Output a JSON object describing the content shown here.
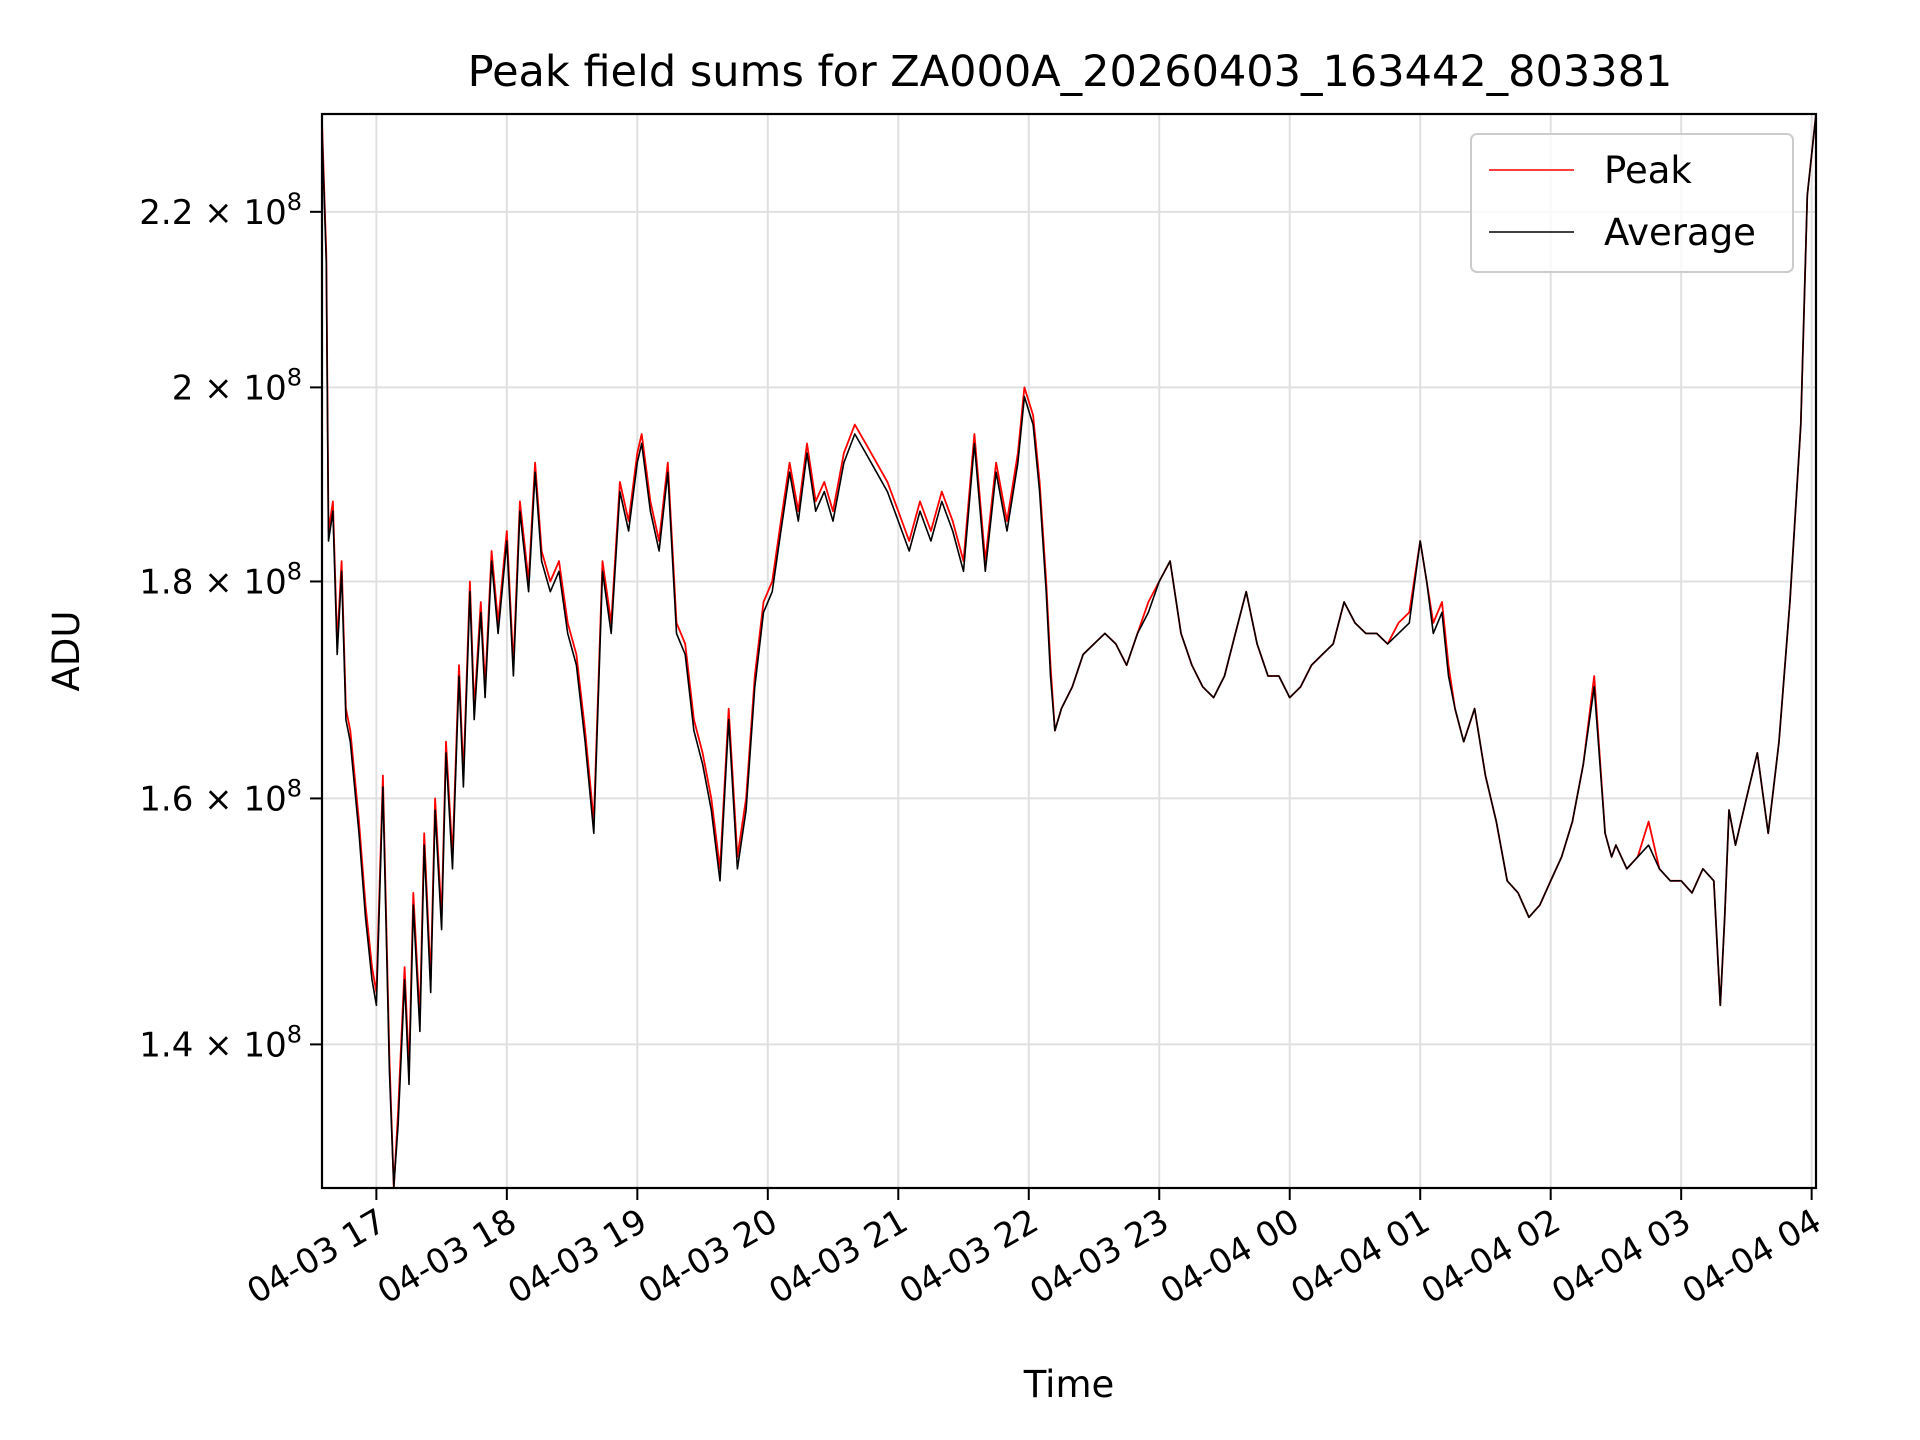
{
  "chart_data": {
    "type": "line",
    "title": "Peak field sums for ZA000A_20260403_163442_803381",
    "xlabel": "Time",
    "ylabel": "ADU",
    "y_scale": "log",
    "ylim": [
      129500000,
      232000000
    ],
    "xlim": [
      "2026-04-03 16:35",
      "2026-04-04 04:02"
    ],
    "grid": true,
    "legend_position": "top-right",
    "x_ticks": [
      {
        "t": "2026-04-03 17:00",
        "label": "04-03 17"
      },
      {
        "t": "2026-04-03 18:00",
        "label": "04-03 18"
      },
      {
        "t": "2026-04-03 19:00",
        "label": "04-03 19"
      },
      {
        "t": "2026-04-03 20:00",
        "label": "04-03 20"
      },
      {
        "t": "2026-04-03 21:00",
        "label": "04-03 21"
      },
      {
        "t": "2026-04-03 22:00",
        "label": "04-03 22"
      },
      {
        "t": "2026-04-03 23:00",
        "label": "04-03 23"
      },
      {
        "t": "2026-04-04 00:00",
        "label": "04-04 00"
      },
      {
        "t": "2026-04-04 01:00",
        "label": "04-04 01"
      },
      {
        "t": "2026-04-04 02:00",
        "label": "04-04 02"
      },
      {
        "t": "2026-04-04 03:00",
        "label": "04-04 03"
      },
      {
        "t": "2026-04-04 04:00",
        "label": "04-04 04"
      }
    ],
    "y_ticks": [
      {
        "value": 140000000,
        "mantissa": "1.4",
        "base": "10",
        "exp": "8"
      },
      {
        "value": 160000000,
        "mantissa": "1.6",
        "base": "10",
        "exp": "8"
      },
      {
        "value": 180000000,
        "mantissa": "1.8",
        "base": "10",
        "exp": "8"
      },
      {
        "value": 200000000,
        "mantissa": "2",
        "base": "10",
        "exp": "8"
      },
      {
        "value": 220000000,
        "mantissa": "2.2",
        "base": "10",
        "exp": "8"
      }
    ],
    "series": [
      {
        "name": "Peak",
        "color": "#ff0000"
      },
      {
        "name": "Average",
        "color": "#000000"
      }
    ],
    "x": [
      "2026-04-03 16:35",
      "2026-04-03 16:37",
      "2026-04-03 16:38",
      "2026-04-03 16:40",
      "2026-04-03 16:42",
      "2026-04-03 16:44",
      "2026-04-03 16:46",
      "2026-04-03 16:48",
      "2026-04-03 16:50",
      "2026-04-03 16:52",
      "2026-04-03 16:55",
      "2026-04-03 16:58",
      "2026-04-03 17:00",
      "2026-04-03 17:03",
      "2026-04-03 17:06",
      "2026-04-03 17:08",
      "2026-04-03 17:10",
      "2026-04-03 17:13",
      "2026-04-03 17:15",
      "2026-04-03 17:17",
      "2026-04-03 17:20",
      "2026-04-03 17:22",
      "2026-04-03 17:25",
      "2026-04-03 17:27",
      "2026-04-03 17:30",
      "2026-04-03 17:32",
      "2026-04-03 17:35",
      "2026-04-03 17:38",
      "2026-04-03 17:40",
      "2026-04-03 17:43",
      "2026-04-03 17:45",
      "2026-04-03 17:48",
      "2026-04-03 17:50",
      "2026-04-03 17:53",
      "2026-04-03 17:56",
      "2026-04-03 18:00",
      "2026-04-03 18:03",
      "2026-04-03 18:06",
      "2026-04-03 18:10",
      "2026-04-03 18:13",
      "2026-04-03 18:16",
      "2026-04-03 18:20",
      "2026-04-03 18:24",
      "2026-04-03 18:28",
      "2026-04-03 18:32",
      "2026-04-03 18:36",
      "2026-04-03 18:40",
      "2026-04-03 18:44",
      "2026-04-03 18:48",
      "2026-04-03 18:52",
      "2026-04-03 18:56",
      "2026-04-03 19:00",
      "2026-04-03 19:02",
      "2026-04-03 19:06",
      "2026-04-03 19:10",
      "2026-04-03 19:14",
      "2026-04-03 19:18",
      "2026-04-03 19:22",
      "2026-04-03 19:26",
      "2026-04-03 19:30",
      "2026-04-03 19:34",
      "2026-04-03 19:38",
      "2026-04-03 19:42",
      "2026-04-03 19:46",
      "2026-04-03 19:50",
      "2026-04-03 19:54",
      "2026-04-03 19:58",
      "2026-04-03 20:02",
      "2026-04-03 20:06",
      "2026-04-03 20:10",
      "2026-04-03 20:14",
      "2026-04-03 20:18",
      "2026-04-03 20:22",
      "2026-04-03 20:26",
      "2026-04-03 20:30",
      "2026-04-03 20:35",
      "2026-04-03 20:40",
      "2026-04-03 20:45",
      "2026-04-03 20:50",
      "2026-04-03 20:55",
      "2026-04-03 21:00",
      "2026-04-03 21:05",
      "2026-04-03 21:10",
      "2026-04-03 21:15",
      "2026-04-03 21:20",
      "2026-04-03 21:25",
      "2026-04-03 21:30",
      "2026-04-03 21:35",
      "2026-04-03 21:40",
      "2026-04-03 21:45",
      "2026-04-03 21:50",
      "2026-04-03 21:55",
      "2026-04-03 21:58",
      "2026-04-03 22:02",
      "2026-04-03 22:05",
      "2026-04-03 22:08",
      "2026-04-03 22:10",
      "2026-04-03 22:12",
      "2026-04-03 22:15",
      "2026-04-03 22:20",
      "2026-04-03 22:25",
      "2026-04-03 22:30",
      "2026-04-03 22:35",
      "2026-04-03 22:40",
      "2026-04-03 22:45",
      "2026-04-03 22:50",
      "2026-04-03 22:55",
      "2026-04-03 23:00",
      "2026-04-03 23:05",
      "2026-04-03 23:10",
      "2026-04-03 23:15",
      "2026-04-03 23:20",
      "2026-04-03 23:25",
      "2026-04-03 23:30",
      "2026-04-03 23:35",
      "2026-04-03 23:40",
      "2026-04-03 23:45",
      "2026-04-03 23:50",
      "2026-04-03 23:55",
      "2026-04-04 00:00",
      "2026-04-04 00:05",
      "2026-04-04 00:10",
      "2026-04-04 00:15",
      "2026-04-04 00:20",
      "2026-04-04 00:25",
      "2026-04-04 00:30",
      "2026-04-04 00:35",
      "2026-04-04 00:40",
      "2026-04-04 00:45",
      "2026-04-04 00:50",
      "2026-04-04 00:55",
      "2026-04-04 01:00",
      "2026-04-04 01:03",
      "2026-04-04 01:06",
      "2026-04-04 01:10",
      "2026-04-04 01:13",
      "2026-04-04 01:16",
      "2026-04-04 01:20",
      "2026-04-04 01:25",
      "2026-04-04 01:30",
      "2026-04-04 01:35",
      "2026-04-04 01:40",
      "2026-04-04 01:45",
      "2026-04-04 01:50",
      "2026-04-04 01:55",
      "2026-04-04 02:00",
      "2026-04-04 02:05",
      "2026-04-04 02:10",
      "2026-04-04 02:15",
      "2026-04-04 02:20",
      "2026-04-04 02:25",
      "2026-04-04 02:28",
      "2026-04-04 02:30",
      "2026-04-04 02:35",
      "2026-04-04 02:40",
      "2026-04-04 02:45",
      "2026-04-04 02:50",
      "2026-04-04 02:55",
      "2026-04-04 03:00",
      "2026-04-04 03:05",
      "2026-04-04 03:10",
      "2026-04-04 03:15",
      "2026-04-04 03:18",
      "2026-04-04 03:20",
      "2026-04-04 03:22",
      "2026-04-04 03:25",
      "2026-04-04 03:30",
      "2026-04-04 03:35",
      "2026-04-04 03:40",
      "2026-04-04 03:45",
      "2026-04-04 03:50",
      "2026-04-04 03:55",
      "2026-04-04 03:58",
      "2026-04-04 04:02"
    ],
    "peak": [
      231000000,
      215000000,
      185000000,
      188000000,
      174000000,
      182000000,
      168000000,
      166000000,
      162000000,
      158000000,
      151000000,
      146000000,
      144000000,
      162000000,
      139000000,
      129500000,
      135000000,
      146000000,
      138000000,
      152000000,
      142000000,
      157000000,
      145000000,
      160000000,
      150000000,
      165000000,
      155000000,
      172000000,
      162000000,
      180000000,
      168000000,
      178000000,
      170000000,
      183000000,
      176000000,
      185000000,
      172000000,
      188000000,
      180000000,
      192000000,
      183000000,
      180000000,
      182000000,
      176000000,
      173000000,
      166000000,
      158000000,
      182000000,
      176000000,
      190000000,
      186000000,
      193000000,
      195000000,
      188000000,
      184000000,
      192000000,
      176000000,
      174000000,
      167000000,
      164000000,
      160000000,
      154000000,
      168000000,
      155000000,
      160000000,
      171000000,
      178000000,
      180000000,
      186000000,
      192000000,
      187000000,
      194000000,
      188000000,
      190000000,
      187000000,
      193000000,
      196000000,
      194000000,
      192000000,
      190000000,
      187000000,
      184000000,
      188000000,
      185000000,
      189000000,
      186000000,
      182000000,
      195000000,
      182000000,
      192000000,
      186000000,
      193000000,
      200000000,
      197000000,
      190000000,
      180000000,
      172000000,
      166000000,
      168000000,
      170000000,
      173000000,
      174000000,
      175000000,
      174000000,
      172000000,
      175000000,
      178000000,
      180000000,
      182000000,
      175000000,
      172000000,
      170000000,
      169000000,
      171000000,
      175000000,
      179000000,
      174000000,
      171000000,
      171000000,
      169000000,
      170000000,
      172000000,
      173000000,
      174000000,
      178000000,
      176000000,
      175000000,
      175000000,
      174000000,
      176000000,
      177000000,
      184000000,
      180000000,
      176000000,
      178000000,
      172000000,
      168000000,
      165000000,
      168000000,
      162000000,
      158000000,
      153000000,
      152000000,
      150000000,
      151000000,
      153000000,
      155000000,
      158000000,
      163000000,
      171000000,
      157000000,
      155000000,
      156000000,
      154000000,
      155000000,
      158000000,
      154000000,
      153000000,
      153000000,
      152000000,
      154000000,
      153000000,
      143000000,
      150000000,
      159000000,
      156000000,
      160000000,
      164000000,
      157000000,
      165000000,
      178000000,
      196000000,
      222000000,
      232000000
    ],
    "average": [
      230000000,
      214000000,
      184000000,
      187000000,
      173000000,
      181000000,
      167000000,
      165000000,
      161000000,
      157000000,
      150000000,
      145000000,
      143000000,
      161000000,
      138000000,
      129600000,
      134000000,
      145000000,
      137000000,
      151000000,
      141000000,
      156000000,
      144000000,
      159000000,
      149000000,
      164000000,
      154000000,
      171000000,
      161000000,
      179000000,
      167000000,
      177000000,
      169000000,
      182000000,
      175000000,
      184000000,
      171000000,
      187000000,
      179000000,
      191000000,
      182000000,
      179000000,
      181000000,
      175000000,
      172000000,
      165000000,
      157000000,
      181000000,
      175000000,
      189000000,
      185000000,
      192000000,
      194000000,
      187000000,
      183000000,
      191000000,
      175000000,
      173000000,
      166000000,
      163000000,
      159000000,
      153000000,
      167000000,
      154000000,
      159000000,
      170000000,
      177000000,
      179000000,
      185000000,
      191000000,
      186000000,
      193000000,
      187000000,
      189000000,
      186000000,
      192000000,
      195000000,
      193000000,
      191000000,
      189000000,
      186000000,
      183000000,
      187000000,
      184000000,
      188000000,
      185000000,
      181000000,
      194000000,
      181000000,
      191000000,
      185000000,
      192000000,
      199000000,
      196000000,
      189000000,
      179000000,
      171000000,
      166000000,
      168000000,
      170000000,
      173000000,
      174000000,
      175000000,
      174000000,
      172000000,
      175000000,
      177000000,
      180000000,
      182000000,
      175000000,
      172000000,
      170000000,
      169000000,
      171000000,
      175000000,
      179000000,
      174000000,
      171000000,
      171000000,
      169000000,
      170000000,
      172000000,
      173000000,
      174000000,
      178000000,
      176000000,
      175000000,
      175000000,
      174000000,
      175000000,
      176000000,
      184000000,
      180000000,
      175000000,
      177000000,
      171000000,
      168000000,
      165000000,
      168000000,
      162000000,
      158000000,
      153000000,
      152000000,
      150000000,
      151000000,
      153000000,
      155000000,
      158000000,
      163000000,
      170000000,
      157000000,
      155000000,
      156000000,
      154000000,
      155000000,
      156000000,
      154000000,
      153000000,
      153000000,
      152000000,
      154000000,
      153000000,
      143000000,
      150000000,
      159000000,
      156000000,
      160000000,
      164000000,
      157000000,
      165000000,
      178000000,
      196000000,
      222000000,
      232000000
    ]
  }
}
